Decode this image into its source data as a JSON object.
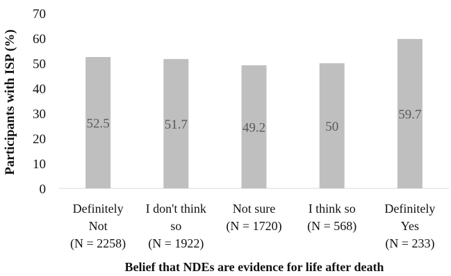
{
  "chart_data": {
    "type": "bar",
    "categories": [
      [
        "Definitely",
        "Not",
        "(N = 2258)"
      ],
      [
        "I don't think",
        "so",
        "(N = 1922)"
      ],
      [
        "Not sure",
        "(N = 1720)"
      ],
      [
        "I think so",
        "(N = 568)"
      ],
      [
        "Definitely",
        "Yes",
        "(N = 233)"
      ]
    ],
    "values": [
      52.5,
      51.7,
      49.2,
      50,
      59.7
    ],
    "data_labels": [
      "52.5",
      "51.7",
      "49.2",
      "50",
      "59.7"
    ],
    "ylabel": "Participants with ISP (%)",
    "xlabel": "Belief that NDEs are evidence for life after death",
    "ylim": [
      0,
      70
    ],
    "yticks": [
      0,
      10,
      20,
      30,
      40,
      50,
      60,
      70
    ],
    "bar_color": "#bfbfbf",
    "label_color": "#595959",
    "grid": false,
    "legend": "none"
  }
}
